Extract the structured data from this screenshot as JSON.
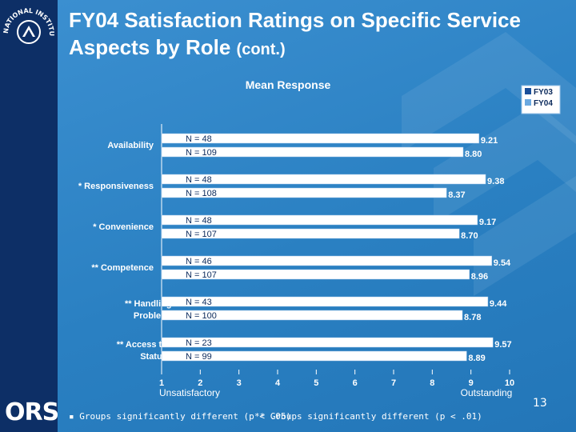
{
  "slide": {
    "title": "FY04 Satisfaction Ratings on Specific Service Aspects by Role",
    "title_suffix": "(cont.)",
    "page_number": "13",
    "footnote_single": "▪ Groups significantly different (p < .05)",
    "footnote_double": "** Groups significantly different (p < .01)",
    "logo_text": "ORS",
    "seal_text": "NATIONAL INSTITUTES OF HEALTH"
  },
  "chart_data": {
    "type": "bar",
    "orientation": "horizontal",
    "title": "Mean Response",
    "categories": [
      "Availability",
      "* Responsiveness",
      "* Convenience",
      "** Competence",
      "** Handling of Problems",
      "** Access to Case Status"
    ],
    "series": [
      {
        "name": "FY03",
        "values": [
          9.21,
          9.38,
          9.17,
          9.54,
          9.44,
          9.57
        ],
        "n_labels": [
          "N = 48",
          "N = 48",
          "N = 48",
          "N = 46",
          "N = 43",
          "N = 23"
        ],
        "color": "#ffffff"
      },
      {
        "name": "FY04",
        "values": [
          8.8,
          8.37,
          8.7,
          8.96,
          8.78,
          8.89
        ],
        "n_labels": [
          "N = 109",
          "N = 108",
          "N = 107",
          "N = 107",
          "N = 100",
          "N = 99"
        ],
        "color": "#ffffff"
      }
    ],
    "value_labels": {
      "FY03": [
        "9.21",
        "9.38",
        "9.17",
        "9.54",
        "9.44",
        "9.57"
      ],
      "FY04": [
        "8.80",
        "8.37",
        "8.70",
        "8.96",
        "8.78",
        "8.89"
      ]
    },
    "xlim": [
      1,
      10
    ],
    "xticks": [
      "1",
      "2",
      "3",
      "4",
      "5",
      "6",
      "7",
      "8",
      "9",
      "10"
    ],
    "x_end_labels": {
      "low": "Unsatisfactory",
      "high": "Outstanding"
    },
    "legend_placement": "top-right",
    "legend_colors": {
      "FY03": "#1a4f9a",
      "FY04": "#6aa8e0"
    }
  }
}
